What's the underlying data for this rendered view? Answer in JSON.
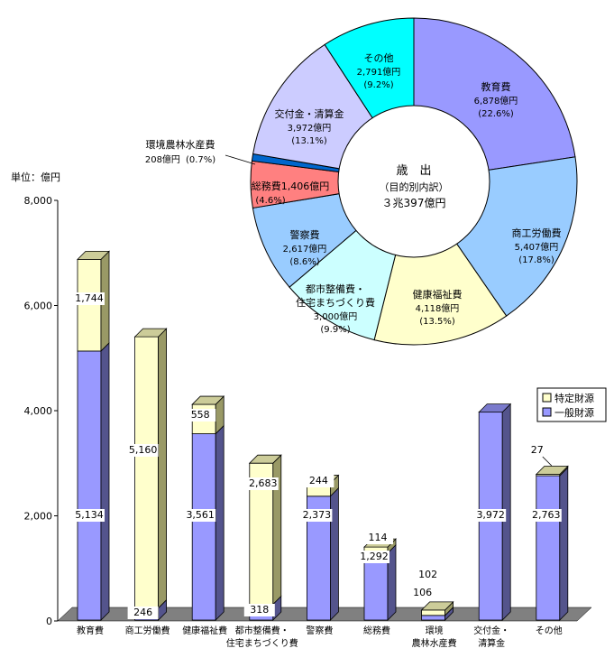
{
  "chart_data": [
    {
      "type": "bar",
      "stacked": true,
      "unit_label": "単位：億円",
      "ylim": [
        0,
        8000
      ],
      "y_ticks": [
        "0",
        "2,000",
        "4,000",
        "6,000",
        "8,000"
      ],
      "y_tick_values": [
        0,
        2000,
        4000,
        6000,
        8000
      ],
      "categories": [
        [
          "教育費"
        ],
        [
          "商工労働費"
        ],
        [
          "健康福祉費"
        ],
        [
          "都市整備費・",
          "住宅まちづくり費"
        ],
        [
          "警察費"
        ],
        [
          "総務費"
        ],
        [
          "環境",
          "農林水産費"
        ],
        [
          "交付金・",
          "清算金"
        ],
        [
          "その他"
        ]
      ],
      "series": [
        {
          "name": "一般財源",
          "color": "#9999ff",
          "values": [
            5134,
            246,
            3561,
            318,
            2373,
            1292,
            106,
            3972,
            2763
          ],
          "labels": [
            "5,134",
            "246",
            "3,561",
            "318",
            "2,373",
            "1,292",
            "106",
            "3,972",
            "2,763"
          ]
        },
        {
          "name": "特定財源",
          "color": "#ffffcc",
          "values": [
            1744,
            5160,
            558,
            2683,
            244,
            114,
            102,
            0,
            27
          ],
          "labels": [
            "1,744",
            "5,160",
            "558",
            "2,683",
            "244",
            "114",
            "102",
            "",
            "27"
          ]
        }
      ],
      "legend": {
        "placement": "right",
        "entries": [
          "特定財源",
          "一般財源"
        ]
      },
      "grid": false
    },
    {
      "type": "pie",
      "donut": true,
      "center_text": [
        "歳　出",
        "（目的別内訳）",
        "３兆397億円"
      ],
      "slices": [
        {
          "label": "教育費",
          "amount": "6,878億円",
          "percent": "(22.6%)",
          "value": 22.6,
          "color": "#9999ff"
        },
        {
          "label": "商工労働費",
          "amount": "5,407億円",
          "percent": "(17.8%)",
          "value": 17.8,
          "color": "#99ccff"
        },
        {
          "label": "健康福祉費",
          "amount": "4,118億円",
          "percent": "(13.5%)",
          "value": 13.5,
          "color": "#ffffcc"
        },
        {
          "label": "都市整備費・\n住宅まちづくり費",
          "amount": "3,000億円",
          "percent": "(9.9%)",
          "value": 9.9,
          "color": "#ccffff"
        },
        {
          "label": "警察費",
          "amount": "2,617億円",
          "percent": "(8.6%)",
          "value": 8.6,
          "color": "#99ccff"
        },
        {
          "label": "総務費",
          "amount": "1,406億円",
          "percent": "(4.6%)",
          "value": 4.6,
          "color": "#ff8080"
        },
        {
          "label": "環境農林水産費",
          "amount": "208億円",
          "percent": "(0.7%)",
          "value": 0.7,
          "color": "#0066cc"
        },
        {
          "label": "交付金・清算金",
          "amount": "3,972億円",
          "percent": "(13.1%)",
          "value": 13.1,
          "color": "#ccccff"
        },
        {
          "label": "その他",
          "amount": "2,791億円",
          "percent": "(9.2%)",
          "value": 9.2,
          "color": "#00ffff"
        }
      ]
    }
  ]
}
